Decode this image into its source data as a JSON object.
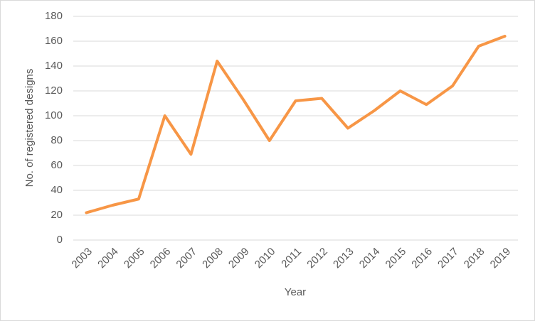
{
  "chart_data": {
    "type": "line",
    "x_label": "Year",
    "y_label": "No. of registered designs",
    "categories": [
      "2003",
      "2004",
      "2005",
      "2006",
      "2007",
      "2008",
      "2009",
      "2010",
      "2011",
      "2012",
      "2013",
      "2014",
      "2015",
      "2016",
      "2017",
      "2018",
      "2019"
    ],
    "values": [
      22,
      28,
      33,
      100,
      69,
      144,
      113,
      80,
      112,
      114,
      90,
      104,
      120,
      109,
      124,
      156,
      164
    ],
    "color": "#f79646",
    "ylim": [
      0,
      180
    ],
    "yticks": [
      0,
      20,
      40,
      60,
      80,
      100,
      120,
      140,
      160,
      180
    ],
    "grid": true
  }
}
